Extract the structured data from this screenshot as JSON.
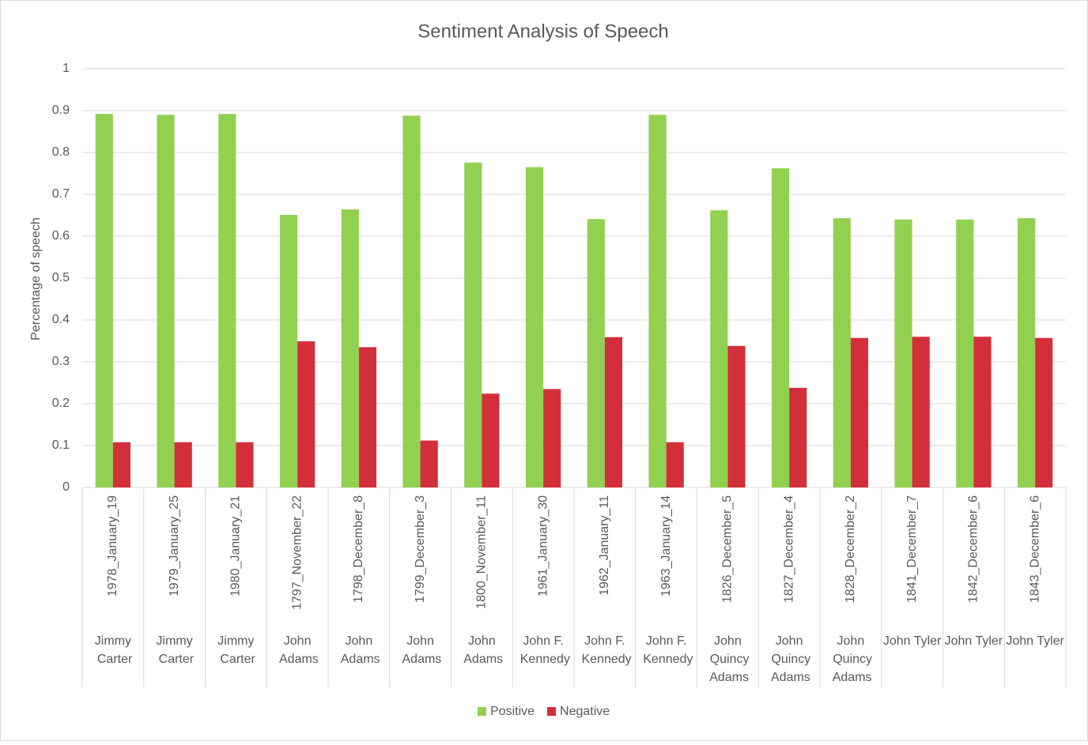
{
  "chart_data": {
    "type": "bar",
    "title": "Sentiment Analysis of Speech",
    "y_label": "Percentage of speech",
    "categories": [
      "1978_January_19",
      "1979_January_25",
      "1980_January_21",
      "1797_November_22",
      "1798_December_8",
      "1799_December_3",
      "1800_November_11",
      "1961_January_30",
      "1962_January_11",
      "1963_January_14",
      "1826_December_5",
      "1827_December_4",
      "1828_December_2",
      "1841_December_7",
      "1842_December_6",
      "1843_December_6"
    ],
    "groups": [
      "Jimmy Carter",
      "Jimmy Carter",
      "Jimmy Carter",
      "John Adams",
      "John Adams",
      "John Adams",
      "John Adams",
      "John F. Kennedy",
      "John F. Kennedy",
      "John F. Kennedy",
      "John Quincy Adams",
      "John Quincy Adams",
      "John Quincy Adams",
      "John Tyler",
      "John Tyler",
      "John Tyler"
    ],
    "series": [
      {
        "name": "Positive",
        "color": "#92D050",
        "values": [
          0.892,
          0.89,
          0.892,
          0.651,
          0.664,
          0.888,
          0.776,
          0.765,
          0.641,
          0.89,
          0.662,
          0.762,
          0.643,
          0.64,
          0.64,
          0.643
        ]
      },
      {
        "name": "Negative",
        "color": "#D32F3A",
        "values": [
          0.108,
          0.108,
          0.108,
          0.349,
          0.335,
          0.112,
          0.224,
          0.235,
          0.359,
          0.108,
          0.338,
          0.238,
          0.357,
          0.36,
          0.36,
          0.357
        ]
      }
    ],
    "ylim": [
      0,
      1
    ],
    "yticks": [
      0,
      0.1,
      0.2,
      0.3,
      0.4,
      0.5,
      0.6,
      0.7,
      0.8,
      0.9,
      1
    ],
    "grid": true,
    "legend": "bottom"
  }
}
